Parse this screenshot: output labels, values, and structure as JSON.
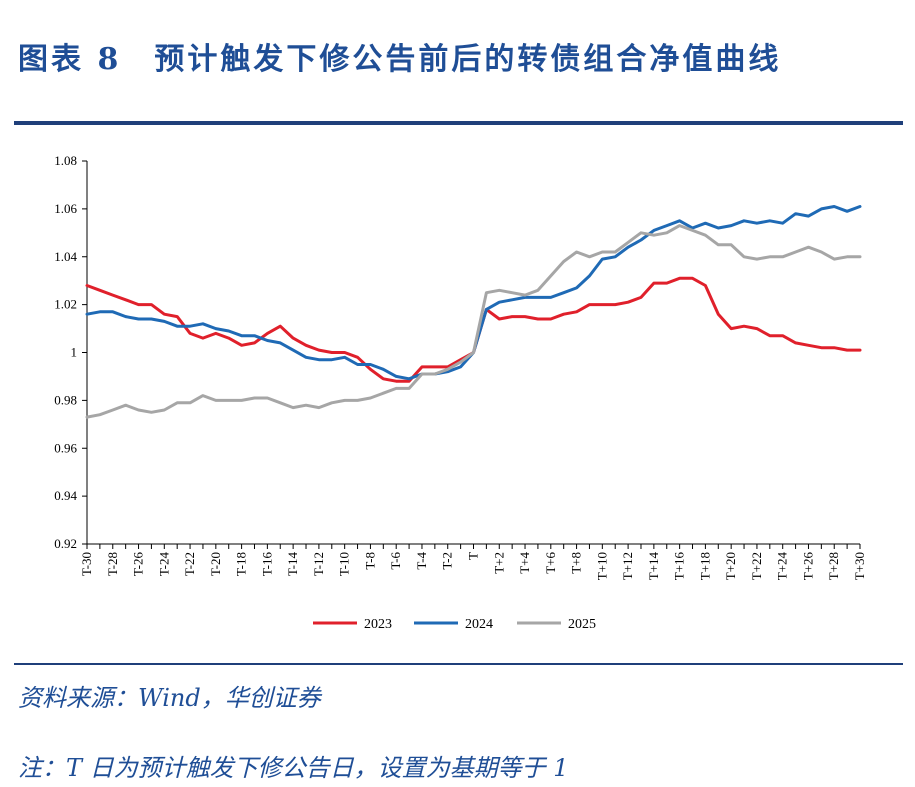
{
  "figure": {
    "title": "图表 8　预计触发下修公告前后的转债组合净值曲线",
    "source": "资料来源：Wind，华创证券",
    "note": "注：T 日为预计触发下修公告日，设置为基期等于 1"
  },
  "chart_data": {
    "type": "line",
    "categories": [
      "T-30",
      "T-29",
      "T-28",
      "T-27",
      "T-26",
      "T-25",
      "T-24",
      "T-23",
      "T-22",
      "T-21",
      "T-20",
      "T-19",
      "T-18",
      "T-17",
      "T-16",
      "T-15",
      "T-14",
      "T-13",
      "T-12",
      "T-11",
      "T-10",
      "T-9",
      "T-8",
      "T-7",
      "T-6",
      "T-5",
      "T-4",
      "T-3",
      "T-2",
      "T-1",
      "T",
      "T+1",
      "T+2",
      "T+3",
      "T+4",
      "T+5",
      "T+6",
      "T+7",
      "T+8",
      "T+9",
      "T+10",
      "T+11",
      "T+12",
      "T+13",
      "T+14",
      "T+15",
      "T+16",
      "T+17",
      "T+18",
      "T+19",
      "T+20",
      "T+21",
      "T+22",
      "T+23",
      "T+24",
      "T+25",
      "T+26",
      "T+27",
      "T+28",
      "T+29",
      "T+30"
    ],
    "tick_labels": [
      "T-30",
      "T-28",
      "T-26",
      "T-24",
      "T-22",
      "T-20",
      "T-18",
      "T-16",
      "T-14",
      "T-12",
      "T-10",
      "T-8",
      "T-6",
      "T-4",
      "T-2",
      "T",
      "T+2",
      "T+4",
      "T+6",
      "T+8",
      "T+10",
      "T+12",
      "T+14",
      "T+16",
      "T+18",
      "T+20",
      "T+22",
      "T+24",
      "T+26",
      "T+28",
      "T+30"
    ],
    "y_ticks": [
      "0.92",
      "0.94",
      "0.96",
      "0.98",
      "1",
      "1.02",
      "1.04",
      "1.06",
      "1.08"
    ],
    "ylim": [
      0.92,
      1.08
    ],
    "legend_position": "bottom",
    "grid": false,
    "series": [
      {
        "name": "2023",
        "color": "#e0202b",
        "values": [
          1.028,
          1.026,
          1.024,
          1.022,
          1.02,
          1.02,
          1.016,
          1.015,
          1.008,
          1.006,
          1.008,
          1.006,
          1.003,
          1.004,
          1.008,
          1.011,
          1.006,
          1.003,
          1.001,
          1.0,
          1.0,
          0.998,
          0.993,
          0.989,
          0.988,
          0.988,
          0.994,
          0.994,
          0.994,
          0.997,
          1.0,
          1.018,
          1.014,
          1.015,
          1.015,
          1.014,
          1.014,
          1.016,
          1.017,
          1.02,
          1.02,
          1.02,
          1.021,
          1.023,
          1.029,
          1.029,
          1.031,
          1.031,
          1.028,
          1.016,
          1.01,
          1.011,
          1.01,
          1.007,
          1.007,
          1.004,
          1.003,
          1.002,
          1.002,
          1.001,
          1.001
        ]
      },
      {
        "name": "2024",
        "color": "#1f6ab5",
        "values": [
          1.016,
          1.017,
          1.017,
          1.015,
          1.014,
          1.014,
          1.013,
          1.011,
          1.011,
          1.012,
          1.01,
          1.009,
          1.007,
          1.007,
          1.005,
          1.004,
          1.001,
          0.998,
          0.997,
          0.997,
          0.998,
          0.995,
          0.995,
          0.993,
          0.99,
          0.989,
          0.991,
          0.991,
          0.992,
          0.994,
          1.0,
          1.018,
          1.021,
          1.022,
          1.023,
          1.023,
          1.023,
          1.025,
          1.027,
          1.032,
          1.039,
          1.04,
          1.044,
          1.047,
          1.051,
          1.053,
          1.055,
          1.052,
          1.054,
          1.052,
          1.053,
          1.055,
          1.054,
          1.055,
          1.054,
          1.058,
          1.057,
          1.06,
          1.061,
          1.059,
          1.061
        ]
      },
      {
        "name": "2025",
        "color": "#a6a6a6",
        "values": [
          0.973,
          0.974,
          0.976,
          0.978,
          0.976,
          0.975,
          0.976,
          0.979,
          0.979,
          0.982,
          0.98,
          0.98,
          0.98,
          0.981,
          0.981,
          0.979,
          0.977,
          0.978,
          0.977,
          0.979,
          0.98,
          0.98,
          0.981,
          0.983,
          0.985,
          0.985,
          0.991,
          0.991,
          0.993,
          0.996,
          1.0,
          1.025,
          1.026,
          1.025,
          1.024,
          1.026,
          1.032,
          1.038,
          1.042,
          1.04,
          1.042,
          1.042,
          1.046,
          1.05,
          1.049,
          1.05,
          1.053,
          1.051,
          1.049,
          1.045,
          1.045,
          1.04,
          1.039,
          1.04,
          1.04,
          1.042,
          1.044,
          1.042,
          1.039,
          1.04,
          1.04
        ]
      }
    ]
  }
}
